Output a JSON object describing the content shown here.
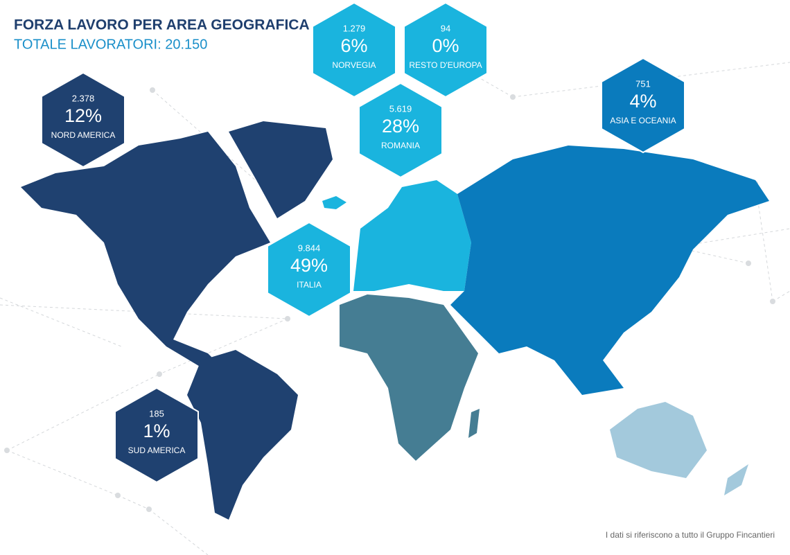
{
  "header": {
    "title": "FORZA LAVORO PER AREA GEOGRAFICA",
    "subtitle": "TOTALE LAVORATORI: 20.150"
  },
  "regions": [
    {
      "count": "2.378",
      "percent": "12%",
      "name": "NORD AMERICA"
    },
    {
      "count": "1.279",
      "percent": "6%",
      "name": "NORVEGIA"
    },
    {
      "count": "94",
      "percent": "0%",
      "name": "RESTO D'EUROPA"
    },
    {
      "count": "5.619",
      "percent": "28%",
      "name": "ROMANIA"
    },
    {
      "count": "751",
      "percent": "4%",
      "name": "ASIA E OCEANIA"
    },
    {
      "count": "9.844",
      "percent": "49%",
      "name": "ITALIA"
    },
    {
      "count": "185",
      "percent": "1%",
      "name": "SUD AMERICA"
    }
  ],
  "footnote": "I dati si riferiscono a tutto il Gruppo Fincantieri"
}
